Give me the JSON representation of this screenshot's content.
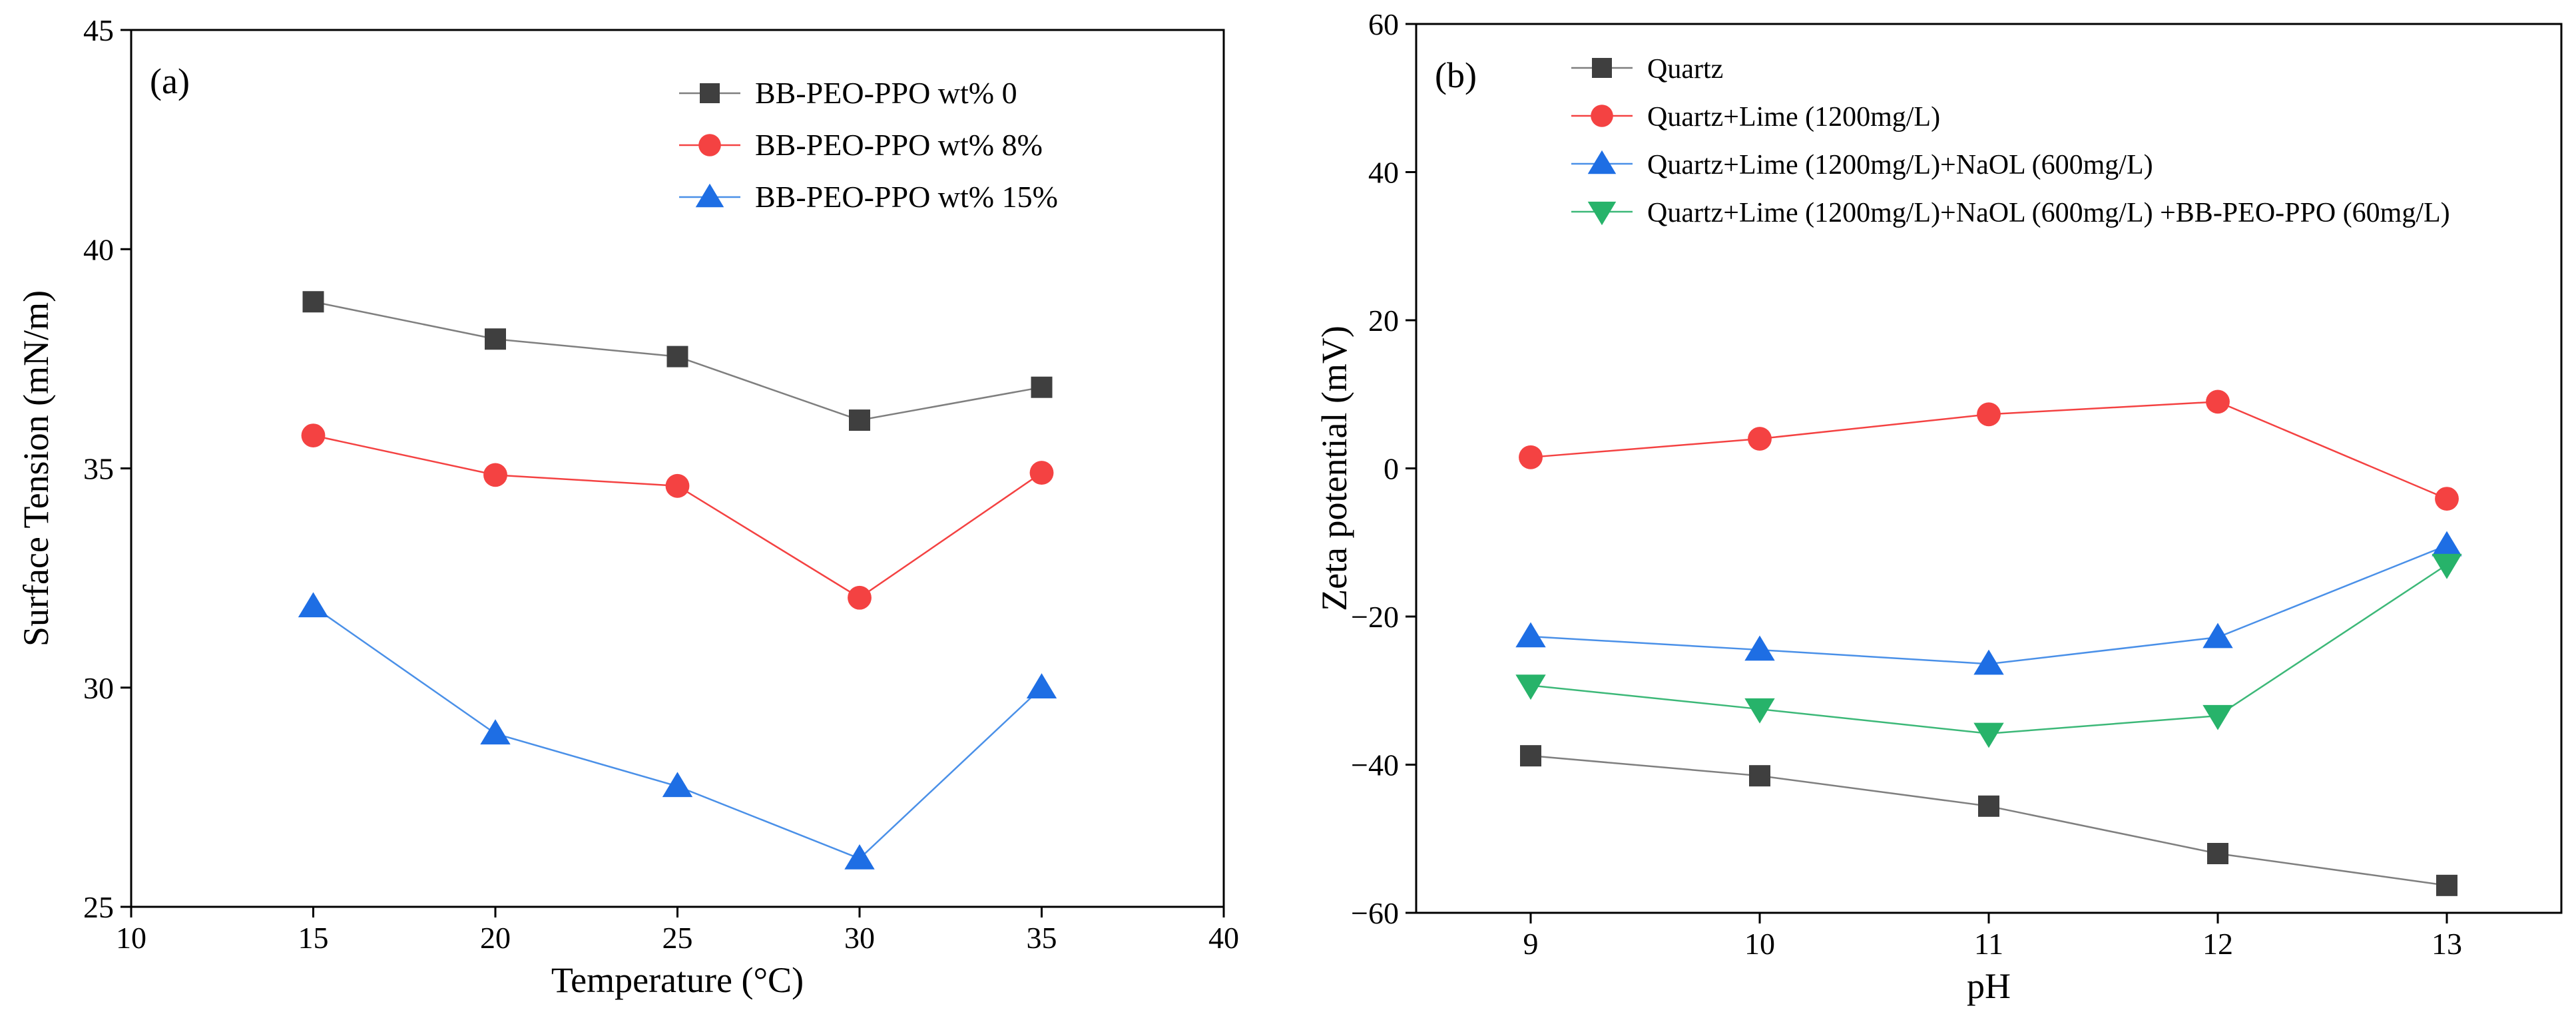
{
  "chart_data": [
    {
      "type": "line",
      "panel_label": "(a)",
      "xlabel": "Temperature (°C)",
      "ylabel": "Surface Tension (mN/m)",
      "xlim": [
        10,
        40
      ],
      "ylim": [
        25,
        45
      ],
      "xticks": [
        10,
        15,
        20,
        25,
        30,
        35,
        40
      ],
      "yticks": [
        25,
        30,
        35,
        40,
        45
      ],
      "legend_position": "top-right",
      "x": [
        15,
        20,
        25,
        30,
        35
      ],
      "series": [
        {
          "name": "BB-PEO-PPO  wt%  0",
          "marker": "square",
          "color": "#3f3f3f",
          "line_color": "#7f7f7f",
          "values": [
            38.8,
            37.95,
            37.55,
            36.1,
            36.85
          ]
        },
        {
          "name": "BB-PEO-PPO  wt%  8%",
          "marker": "circle",
          "color": "#f44242",
          "line_color": "#f44242",
          "values": [
            35.75,
            34.85,
            34.6,
            32.05,
            34.9
          ]
        },
        {
          "name": "BB-PEO-PPO  wt%  15%",
          "marker": "triangle-up",
          "color": "#1e6ee4",
          "line_color": "#4a90e8",
          "values": [
            31.85,
            28.95,
            27.75,
            26.1,
            30.0
          ]
        }
      ]
    },
    {
      "type": "line",
      "panel_label": "(b)",
      "xlabel": "pH",
      "ylabel": "Zeta potential (mV)",
      "xlim": [
        8.5,
        13.5
      ],
      "ylim": [
        -60,
        60
      ],
      "xticks": [
        9,
        10,
        11,
        12,
        13
      ],
      "yticks": [
        -60,
        -40,
        -20,
        0,
        20,
        40,
        60
      ],
      "legend_position": "top-left",
      "x": [
        9,
        10,
        11,
        12,
        13
      ],
      "series": [
        {
          "name": "Quartz",
          "marker": "square",
          "color": "#3f3f3f",
          "line_color": "#7f7f7f",
          "values": [
            -38.8,
            -41.5,
            -45.6,
            -52.0,
            -56.3
          ]
        },
        {
          "name": "Quartz+Lime (1200mg/L)",
          "marker": "circle",
          "color": "#f44242",
          "line_color": "#f44242",
          "values": [
            1.5,
            4.0,
            7.3,
            9.0,
            -4.1
          ]
        },
        {
          "name": "Quartz+Lime (1200mg/L)+NaOL (600mg/L)",
          "marker": "triangle-up",
          "color": "#1e6ee4",
          "line_color": "#4a90e8",
          "values": [
            -22.7,
            -24.5,
            -26.4,
            -22.8,
            -10.4
          ]
        },
        {
          "name": "Quartz+Lime (1200mg/L)+NaOL (600mg/L) +BB-PEO-PPO (60mg/L)",
          "marker": "triangle-down",
          "color": "#27b36a",
          "line_color": "#3cb878",
          "values": [
            -29.3,
            -32.5,
            -35.8,
            -33.4,
            -13.0
          ]
        }
      ]
    }
  ]
}
